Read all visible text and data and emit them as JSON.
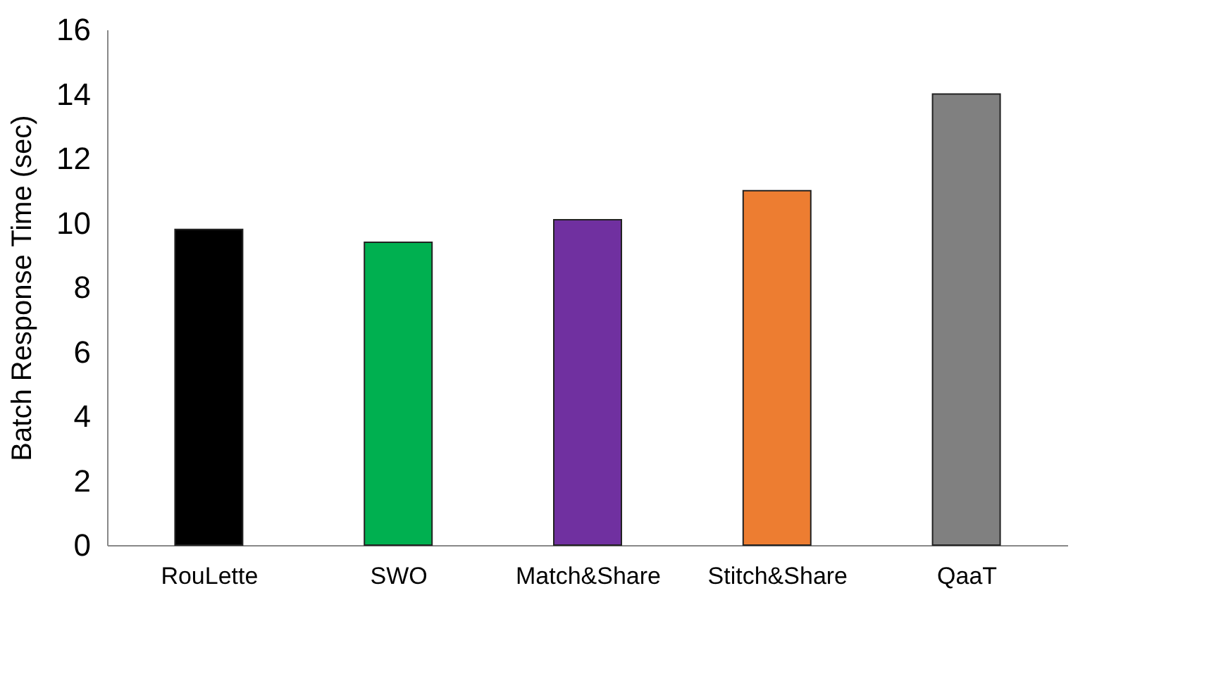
{
  "chart_data": {
    "type": "bar",
    "ylabel": "Batch Response Time (sec)",
    "categories": [
      "RouLette",
      "SWO",
      "Match&Share",
      "Stitch&Share",
      "QaaT"
    ],
    "values": [
      9.8,
      9.4,
      10.1,
      11,
      14
    ],
    "colors": [
      "#000000",
      "#00b050",
      "#7030a0",
      "#ed7d31",
      "#808080"
    ],
    "ylim": [
      0,
      16
    ],
    "yticks": [
      0,
      2,
      4,
      6,
      8,
      10,
      12,
      14,
      16
    ],
    "grid": false,
    "legend": false
  }
}
